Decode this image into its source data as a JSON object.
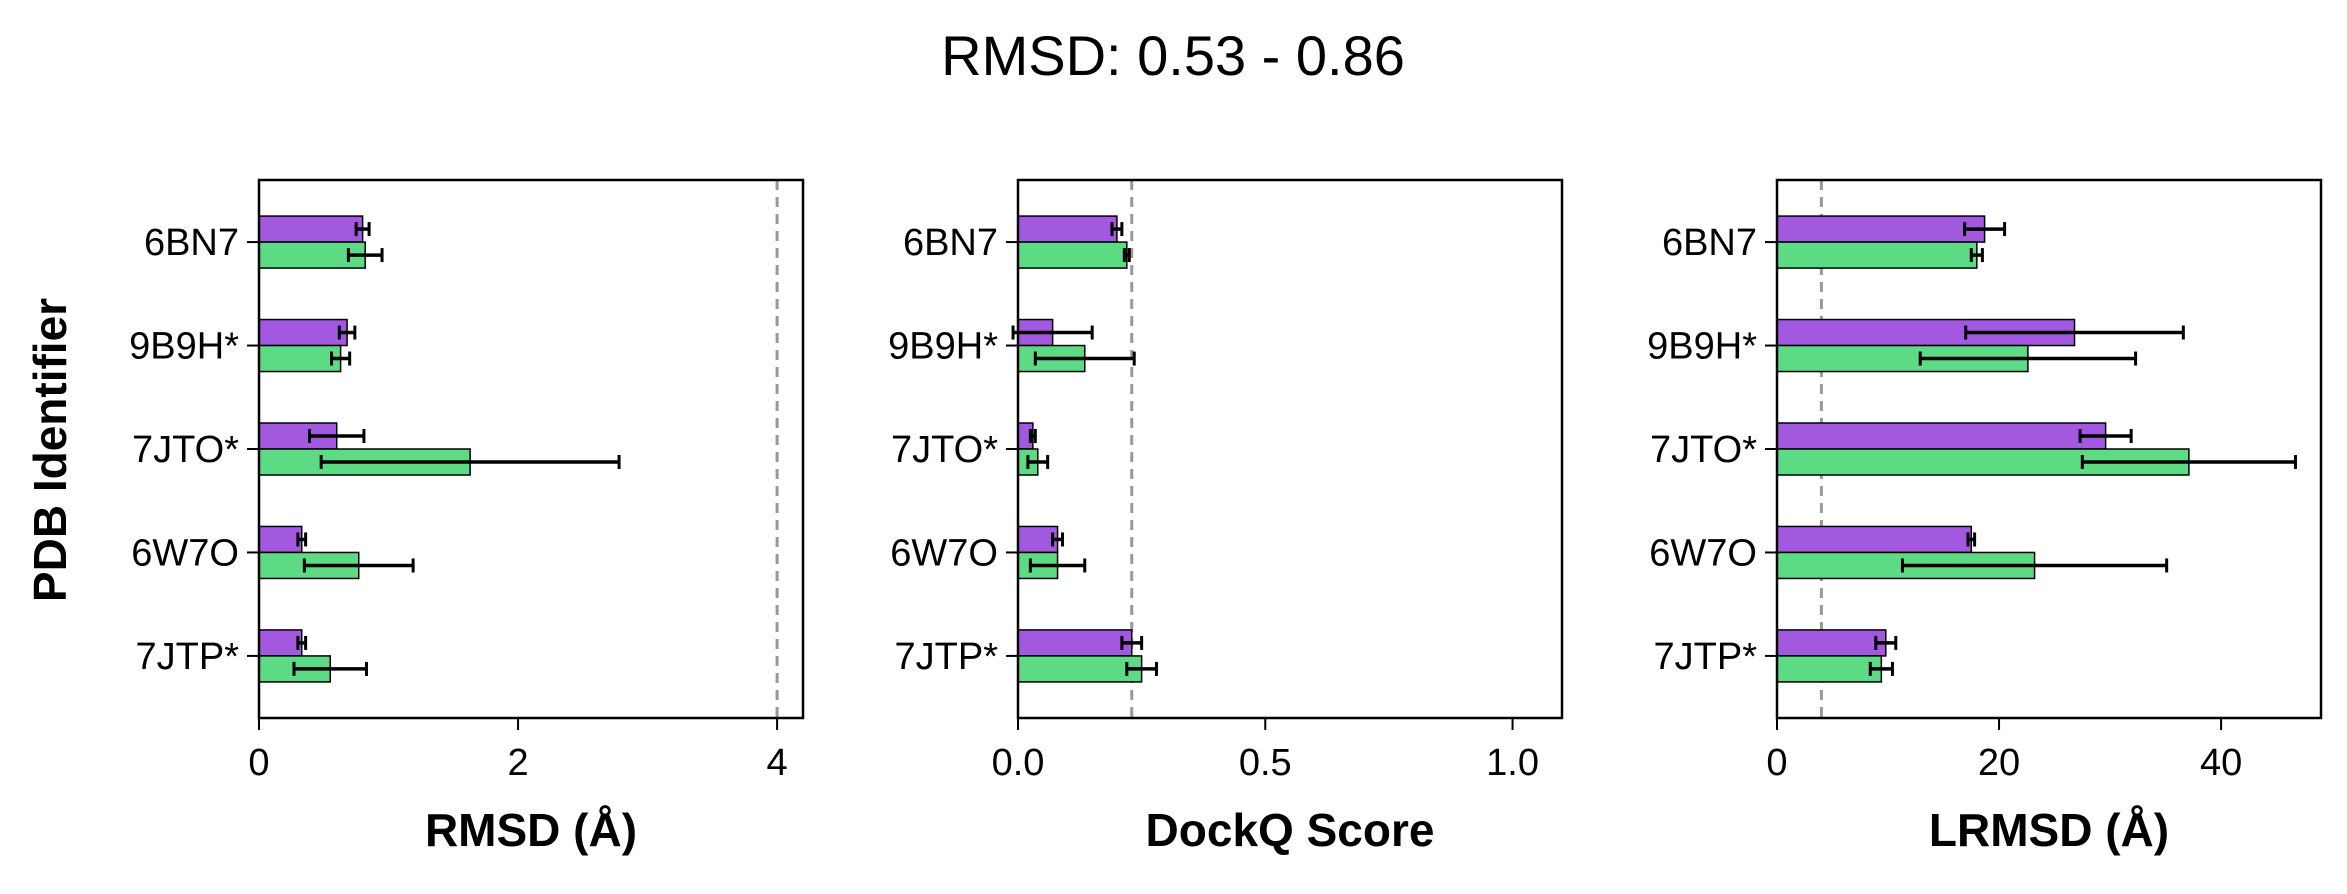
{
  "figure": {
    "suptitle": "RMSD: 0.53 - 0.86",
    "ylabel": "PDB Identifier"
  },
  "colors": {
    "series_a": "#a259e0",
    "series_b": "#5cdb84",
    "reference_line": "#999999",
    "error_bar": "#000000"
  },
  "chart_data": [
    {
      "type": "bar",
      "orientation": "horizontal",
      "xlabel": "RMSD (Å)",
      "xlim": [
        0,
        4.2
      ],
      "xticks": [
        0,
        2,
        4
      ],
      "reference_line": 4,
      "categories": [
        "6BN7",
        "9B9H*",
        "7JTO*",
        "6W7O",
        "7JTP*"
      ],
      "series": [
        {
          "values": [
            0.8,
            0.68,
            0.6,
            0.33,
            0.33
          ],
          "errors": [
            0.05,
            0.06,
            0.21,
            0.03,
            0.03
          ]
        },
        {
          "values": [
            0.82,
            0.63,
            1.63,
            0.77,
            0.55
          ],
          "errors": [
            0.13,
            0.07,
            1.15,
            0.42,
            0.28
          ]
        }
      ],
      "grid": false
    },
    {
      "type": "bar",
      "orientation": "horizontal",
      "xlabel": "DockQ Score",
      "xlim": [
        0,
        1.1
      ],
      "xticks": [
        0.0,
        0.5,
        1.0
      ],
      "reference_line": 0.23,
      "categories": [
        "6BN7",
        "9B9H*",
        "7JTO*",
        "6W7O",
        "7JTP*"
      ],
      "series": [
        {
          "values": [
            0.2,
            0.07,
            0.03,
            0.08,
            0.23
          ],
          "errors": [
            0.01,
            0.08,
            0.005,
            0.01,
            0.02
          ]
        },
        {
          "values": [
            0.22,
            0.135,
            0.04,
            0.08,
            0.25
          ],
          "errors": [
            0.005,
            0.1,
            0.02,
            0.055,
            0.03
          ]
        }
      ],
      "grid": false
    },
    {
      "type": "bar",
      "orientation": "horizontal",
      "xlabel": "LRMSD (Å)",
      "xlim": [
        0,
        49
      ],
      "xticks": [
        0,
        20,
        40
      ],
      "reference_line": 4,
      "categories": [
        "6BN7",
        "9B9H*",
        "7JTO*",
        "6W7O",
        "7JTP*"
      ],
      "series": [
        {
          "values": [
            18.7,
            26.8,
            29.6,
            17.5,
            9.8
          ],
          "errors": [
            1.8,
            9.8,
            2.3,
            0.3,
            0.9
          ]
        },
        {
          "values": [
            18.0,
            22.6,
            37.1,
            23.2,
            9.4
          ],
          "errors": [
            0.5,
            9.7,
            9.6,
            11.9,
            1.0
          ]
        }
      ],
      "grid": false
    }
  ]
}
